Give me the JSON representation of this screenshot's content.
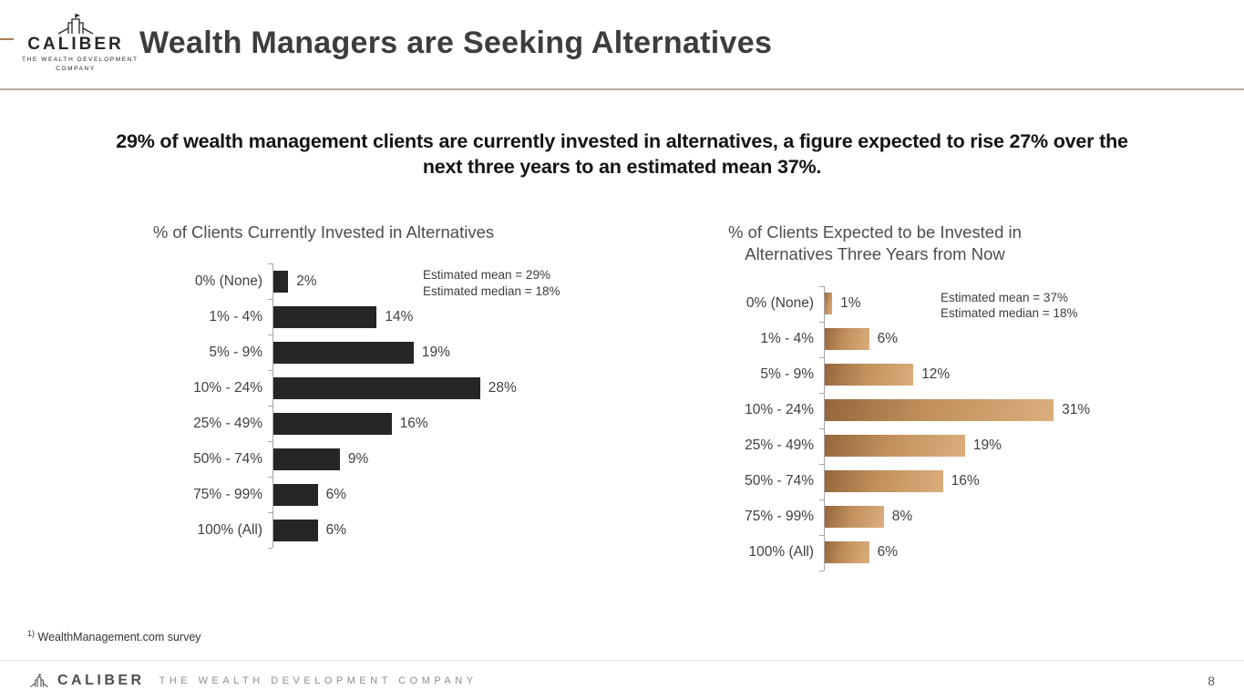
{
  "header": {
    "logo_name": "CALIBER",
    "logo_tagline_lines": [
      "THE WEALTH DEVELOPMENT",
      "COMPANY"
    ],
    "title": "Wealth Managers are Seeking Alternatives"
  },
  "subtitle": "29% of wealth management clients are currently invested in alternatives, a figure expected to rise 27% over the next three years to an estimated mean 37%.",
  "chart_data": [
    {
      "type": "bar",
      "orientation": "horizontal",
      "title": "% of Clients Currently Invested in Alternatives",
      "categories": [
        "0% (None)",
        "1% - 4%",
        "5% - 9%",
        "10% - 24%",
        "25% - 49%",
        "50% - 74%",
        "75% - 99%",
        "100% (All)"
      ],
      "values": [
        2,
        14,
        19,
        28,
        16,
        9,
        6,
        6
      ],
      "value_suffix": "%",
      "annotations": [
        "Estimated mean = 29%",
        "Estimated median = 18%"
      ],
      "bar_color": "#262626",
      "axis_color": "#a6a6a6",
      "xlim": [
        0,
        35
      ],
      "grid": false,
      "legend": false
    },
    {
      "type": "bar",
      "orientation": "horizontal",
      "title": "% of Clients Expected to be Invested in Alternatives Three Years from Now",
      "categories": [
        "0% (None)",
        "1% - 4%",
        "5% - 9%",
        "10% - 24%",
        "25% - 49%",
        "50% - 74%",
        "75% - 99%",
        "100% (All)"
      ],
      "values": [
        1,
        6,
        12,
        31,
        19,
        16,
        8,
        6
      ],
      "value_suffix": "%",
      "annotations": [
        "Estimated mean = 37%",
        "Estimated median = 18%"
      ],
      "bar_gradient": [
        "#94663b",
        "#dcae7c"
      ],
      "axis_color": "#a6a6a6",
      "xlim": [
        0,
        35
      ],
      "grid": false,
      "legend": false
    }
  ],
  "footnote": {
    "marker": "1)",
    "text": "WealthManagement.com survey"
  },
  "footer": {
    "brand": "CALIBER",
    "tagline": "THE WEALTH DEVELOPMENT COMPANY",
    "page_number": "8"
  }
}
